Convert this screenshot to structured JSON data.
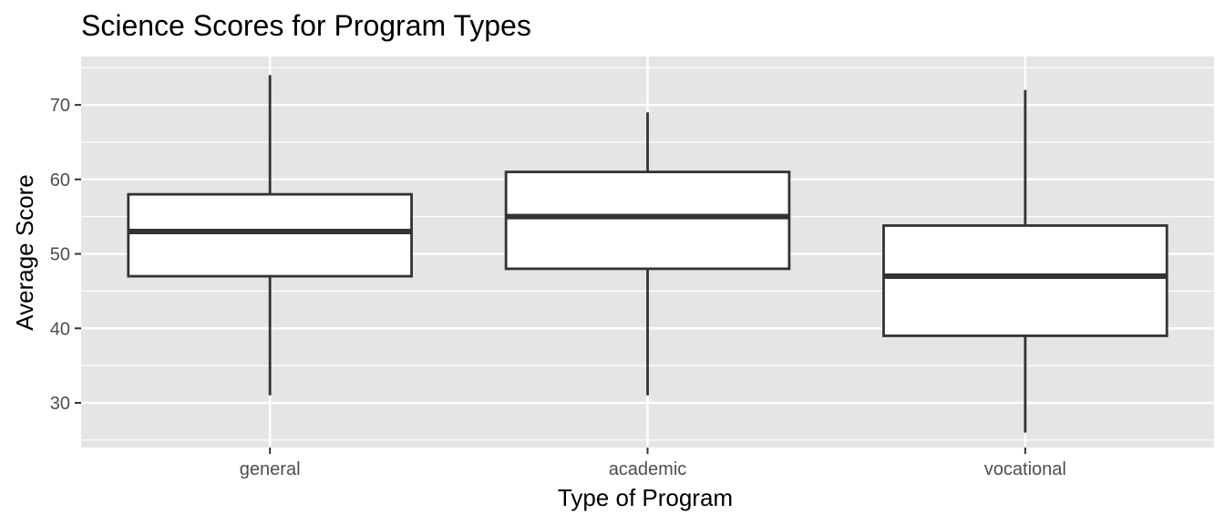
{
  "chart_data": {
    "type": "box",
    "title": "Science Scores for Program Types",
    "xlabel": "Type of Program",
    "ylabel": "Average Score",
    "categories": [
      "general",
      "academic",
      "vocational"
    ],
    "boxes": [
      {
        "category": "general",
        "whisker_low": 31,
        "q1": 47,
        "median": 53,
        "q3": 58,
        "whisker_high": 74
      },
      {
        "category": "academic",
        "whisker_low": 31,
        "q1": 48,
        "median": 55,
        "q3": 61,
        "whisker_high": 69
      },
      {
        "category": "vocational",
        "whisker_low": 26,
        "q1": 39,
        "median": 47,
        "q3": 53.8,
        "whisker_high": 72
      }
    ],
    "ylim": [
      24,
      76.5
    ],
    "yticks": [
      30,
      40,
      50,
      60,
      70
    ],
    "grid": true,
    "panel_background": "#e5e5e5",
    "gridline_color": "#ffffff",
    "box_fill": "#ffffff",
    "box_line": "#333333"
  }
}
